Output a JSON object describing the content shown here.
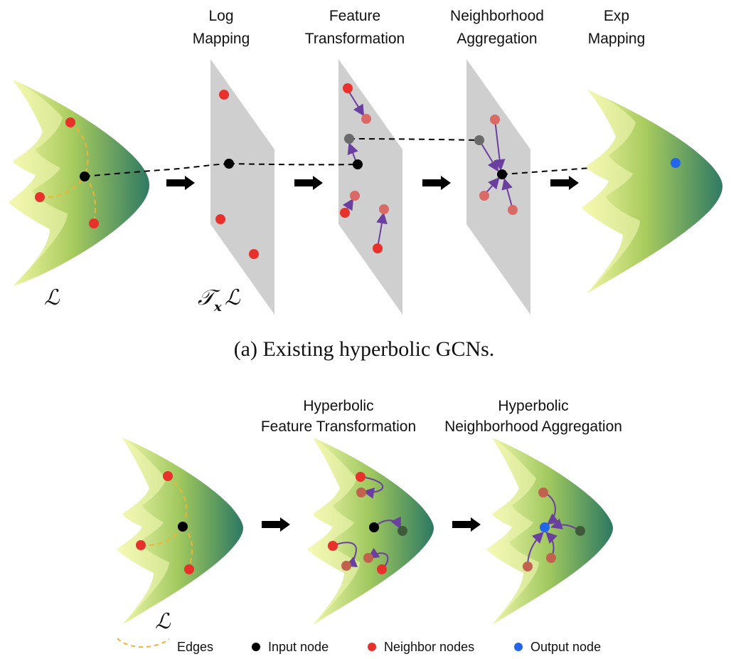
{
  "panel_a": {
    "stages": [
      {
        "line1": "Log",
        "line2": "Mapping"
      },
      {
        "line1": "Feature",
        "line2": "Transformation"
      },
      {
        "line1": "Neighborhood",
        "line2": "Aggregation"
      },
      {
        "line1": "Exp",
        "line2": "Mapping"
      }
    ],
    "manifold_symbol": "ℒ",
    "tangent_symbol_main": "𝒯",
    "tangent_symbol_sub": "x",
    "tangent_symbol_tail": "ℒ",
    "caption": "(a)  Existing hyperbolic GCNs."
  },
  "panel_b": {
    "stages": [
      {
        "line1": "Hyperbolic",
        "line2": "Feature Transformation"
      },
      {
        "line1": "Hyperbolic",
        "line2": "Neighborhood Aggregation"
      }
    ],
    "manifold_symbol": "ℒ"
  },
  "legend": {
    "edges": "Edges",
    "input_node": "Input node",
    "neighbor_nodes": "Neighbor nodes",
    "output_node": "Output node"
  },
  "colors": {
    "input_node": "#000000",
    "neighbor_node": "#e8312a",
    "transformed_node": "#d96a66",
    "output_node": "#2366e8",
    "edge": "#f2b233",
    "message_arrow": "#6b3fa0",
    "tangent_plane": "#d0cfd0"
  }
}
